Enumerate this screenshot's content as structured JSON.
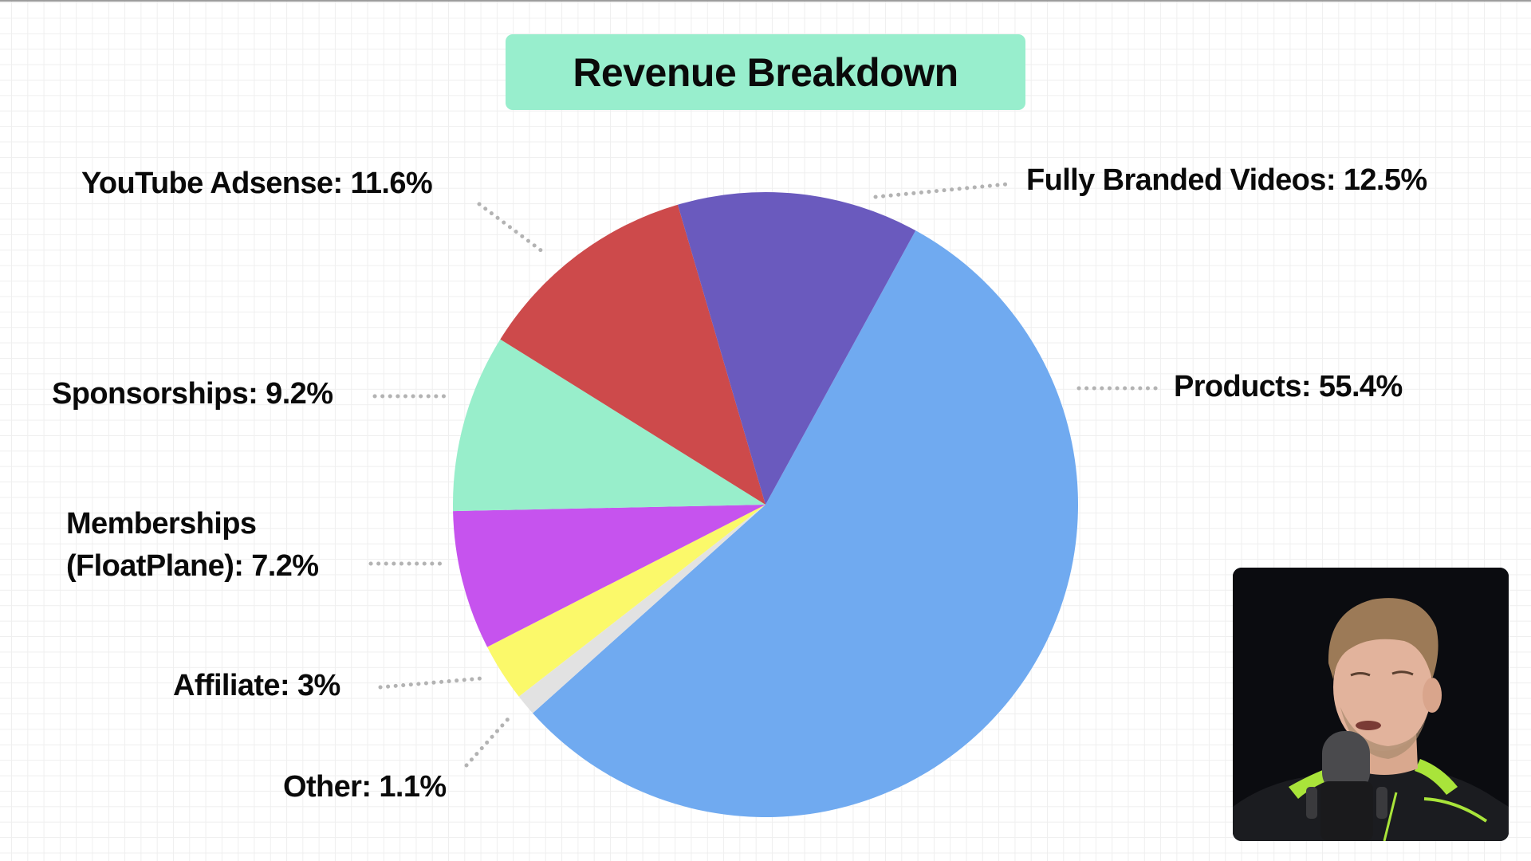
{
  "title": "Revenue Breakdown",
  "chart_data": {
    "type": "pie",
    "title": "Revenue Breakdown",
    "start_angle_deg": 28.7,
    "direction": "clockwise",
    "center": [
      960,
      633
    ],
    "radius": 392,
    "slices": [
      {
        "label": "Products",
        "value": 55.4,
        "display": "Products: 55.4%",
        "color": "#70aaf0"
      },
      {
        "label": "Other",
        "value": 1.1,
        "display": "Other: 1.1%",
        "color": "#e2e2e2"
      },
      {
        "label": "Affiliate",
        "value": 3,
        "display": "Affiliate: 3%",
        "color": "#fbf96a"
      },
      {
        "label": "Memberships (FloatPlane)",
        "value": 7.2,
        "display": "Memberships (FloatPlane): 7.2%",
        "color": "#c653ee"
      },
      {
        "label": "Sponsorships",
        "value": 9.2,
        "display": "Sponsorships: 9.2%",
        "color": "#98eecb"
      },
      {
        "label": "YouTube Adsense",
        "value": 11.6,
        "display": "YouTube Adsense: 11.6%",
        "color": "#cd4a4b"
      },
      {
        "label": "Fully Branded Videos",
        "value": 12.5,
        "display": "Fully Branded Videos: 12.5%",
        "color": "#6a5abe"
      }
    ],
    "legend": "none (callout labels with dotted leader lines)",
    "grid": "background graph-paper grid"
  },
  "labels": {
    "products": "Products: 55.4%",
    "other": "Other: 1.1%",
    "affiliate": "Affiliate: 3%",
    "memberships_line1": "Memberships",
    "memberships_line2": "(FloatPlane): 7.2%",
    "sponsorships": "Sponsorships: 9.2%",
    "youtube": "YouTube Adsense: 11.6%",
    "fully_branded": "Fully Branded Videos: 12.5%"
  },
  "colors": {
    "title_bg": "#98eecd",
    "leader": "#b3b3b3"
  },
  "webcam": {
    "description": "presenter webcam overlay"
  }
}
